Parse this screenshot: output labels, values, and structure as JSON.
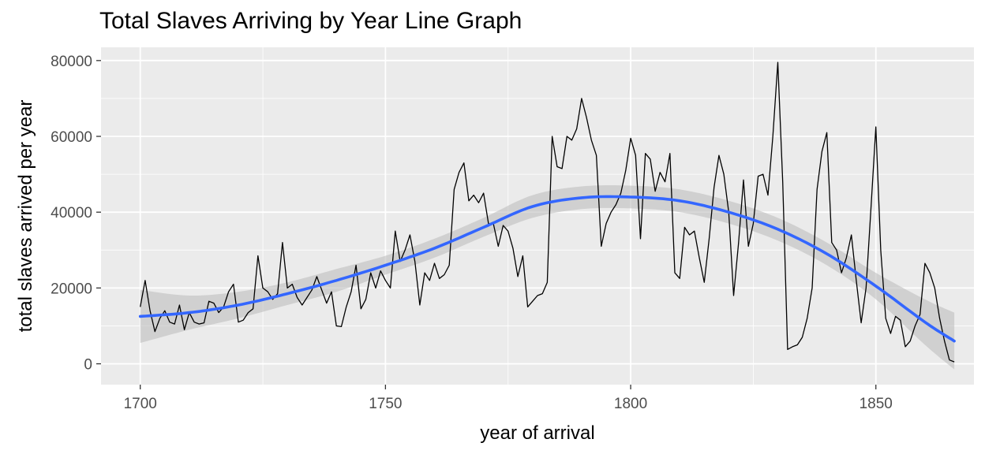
{
  "chart_data": {
    "type": "line",
    "title": "Total Slaves Arriving by Year Line Graph",
    "xlabel": "year of arrival",
    "ylabel": "total slaves arrived per year",
    "xlim": [
      1692,
      1870
    ],
    "ylim": [
      -5500,
      83500
    ],
    "x_ticks": [
      1700,
      1750,
      1800,
      1850
    ],
    "y_ticks": [
      0,
      20000,
      40000,
      60000,
      80000
    ],
    "grid": true,
    "legend": "none",
    "colors": {
      "panel": "#EBEBEB",
      "grid_major": "#FFFFFF",
      "line": "#000000",
      "smooth": "#3366FF",
      "ribbon": "#BEBEBE"
    },
    "series": [
      {
        "type": "line",
        "x": [
          1700,
          1701,
          1702,
          1703,
          1704,
          1705,
          1706,
          1707,
          1708,
          1709,
          1710,
          1711,
          1712,
          1713,
          1714,
          1715,
          1716,
          1717,
          1718,
          1719,
          1720,
          1721,
          1722,
          1723,
          1724,
          1725,
          1726,
          1727,
          1728,
          1729,
          1730,
          1731,
          1732,
          1733,
          1734,
          1735,
          1736,
          1737,
          1738,
          1739,
          1740,
          1741,
          1742,
          1743,
          1744,
          1745,
          1746,
          1747,
          1748,
          1749,
          1750,
          1751,
          1752,
          1753,
          1754,
          1755,
          1756,
          1757,
          1758,
          1759,
          1760,
          1761,
          1762,
          1763,
          1764,
          1765,
          1766,
          1767,
          1768,
          1769,
          1770,
          1771,
          1772,
          1773,
          1774,
          1775,
          1776,
          1777,
          1778,
          1779,
          1780,
          1781,
          1782,
          1783,
          1784,
          1785,
          1786,
          1787,
          1788,
          1789,
          1790,
          1791,
          1792,
          1793,
          1794,
          1795,
          1796,
          1797,
          1798,
          1799,
          1800,
          1801,
          1802,
          1803,
          1804,
          1805,
          1806,
          1807,
          1808,
          1809,
          1810,
          1811,
          1812,
          1813,
          1814,
          1815,
          1816,
          1817,
          1818,
          1819,
          1820,
          1821,
          1822,
          1823,
          1824,
          1825,
          1826,
          1827,
          1828,
          1829,
          1830,
          1831,
          1832,
          1833,
          1834,
          1835,
          1836,
          1837,
          1838,
          1839,
          1840,
          1841,
          1842,
          1843,
          1844,
          1845,
          1846,
          1847,
          1848,
          1849,
          1850,
          1851,
          1852,
          1853,
          1854,
          1855,
          1856,
          1857,
          1858,
          1859,
          1860,
          1861,
          1862,
          1863,
          1864,
          1865,
          1866
        ],
        "y": [
          15000,
          22000,
          14000,
          8500,
          12000,
          14000,
          11000,
          10500,
          15500,
          9000,
          13500,
          11000,
          10500,
          10800,
          16500,
          16000,
          13500,
          15000,
          19000,
          21000,
          11000,
          11500,
          13500,
          14500,
          28500,
          20000,
          19000,
          17000,
          18500,
          32000,
          20000,
          21000,
          17500,
          15500,
          17500,
          19500,
          23000,
          19500,
          16000,
          19000,
          10000,
          9800,
          15000,
          19000,
          26000,
          14500,
          17000,
          24000,
          20000,
          24500,
          22000,
          20000,
          35000,
          27000,
          30000,
          34000,
          27000,
          15500,
          24000,
          22000,
          26500,
          22500,
          23500,
          26000,
          46000,
          50500,
          53000,
          43000,
          44500,
          42500,
          45000,
          37000,
          37000,
          31000,
          36500,
          35000,
          30500,
          23000,
          28500,
          15000,
          16500,
          18000,
          18500,
          21500,
          60000,
          52000,
          51500,
          60000,
          59000,
          62000,
          70000,
          65000,
          59000,
          55000,
          31000,
          37000,
          40000,
          42000,
          45000,
          51000,
          59500,
          55000,
          33000,
          55500,
          54000,
          45500,
          50500,
          48000,
          55500,
          24000,
          22500,
          36000,
          34000,
          35000,
          28000,
          21500,
          33000,
          46500,
          55000,
          50000,
          40000,
          18000,
          32000,
          48500,
          31000,
          37000,
          49500,
          50000,
          44500,
          60000,
          79500,
          48000,
          3800,
          4500,
          5000,
          7000,
          12000,
          20000,
          46000,
          56000,
          61000,
          32000,
          30000,
          24000,
          28000,
          34000,
          22000,
          10800,
          20000,
          41000,
          62500,
          30000,
          12000,
          8000,
          12500,
          11500,
          4500,
          6000,
          10000,
          13000,
          26500,
          24000,
          20000,
          12000,
          6000,
          1000,
          500
        ]
      },
      {
        "type": "smooth",
        "x": [
          1700,
          1710,
          1720,
          1730,
          1740,
          1750,
          1760,
          1770,
          1780,
          1790,
          1800,
          1810,
          1820,
          1830,
          1840,
          1850,
          1860,
          1866
        ],
        "y": [
          12500,
          13500,
          15500,
          18500,
          22000,
          26000,
          30500,
          36000,
          41500,
          43800,
          44000,
          43000,
          40000,
          35500,
          29000,
          20500,
          11000,
          6000
        ],
        "band_low": [
          5500,
          9000,
          12000,
          15500,
          19000,
          23500,
          28000,
          33500,
          38500,
          40800,
          41000,
          40000,
          37000,
          32500,
          26000,
          17000,
          5000,
          -1500
        ],
        "band_high": [
          19500,
          18000,
          19000,
          21500,
          25000,
          28500,
          33000,
          38500,
          44500,
          46800,
          47000,
          46000,
          43000,
          38500,
          32000,
          24000,
          17000,
          13500
        ]
      }
    ]
  }
}
